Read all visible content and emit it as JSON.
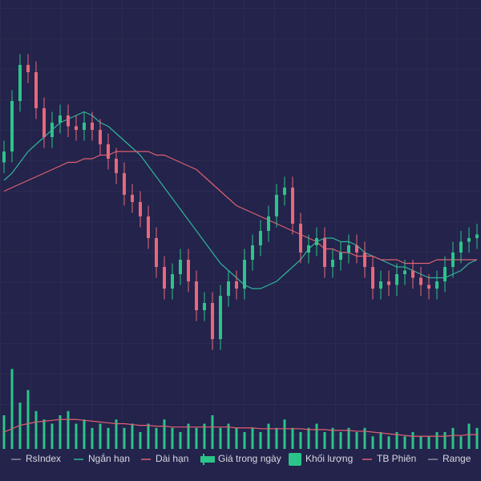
{
  "chart_data": {
    "type": "candlestick",
    "ylim": [
      0,
      100
    ],
    "volume_ylim": [
      0,
      100
    ],
    "series": [
      {
        "name": "RsIndex",
        "color": "#8a8aa0"
      },
      {
        "name": "Ngắn hạn",
        "color": "#2fb59b",
        "values": [
          50,
          52,
          55,
          58,
          60,
          62,
          64,
          66,
          67,
          68,
          69,
          68,
          66,
          65,
          63,
          61,
          59,
          57,
          54,
          51,
          48,
          45,
          42,
          39,
          36,
          33,
          30,
          27,
          25,
          23,
          21,
          20,
          20,
          21,
          22,
          24,
          26,
          28,
          31,
          33,
          34,
          34,
          33,
          33,
          32,
          30,
          29,
          28,
          27,
          26,
          26,
          25,
          24,
          23,
          23,
          23,
          24,
          25,
          27,
          28
        ]
      },
      {
        "name": "Dài hạn",
        "color": "#e0606f",
        "values": [
          47,
          48,
          49,
          50,
          51,
          52,
          53,
          54,
          55,
          55,
          56,
          56,
          57,
          57,
          58,
          58,
          58,
          58,
          58,
          57,
          57,
          56,
          55,
          54,
          53,
          51,
          49,
          47,
          45,
          43,
          42,
          41,
          40,
          39,
          38,
          37,
          36,
          35,
          34,
          33,
          31,
          31,
          30,
          30,
          29,
          29,
          29,
          28,
          28,
          28,
          27,
          27,
          27,
          27,
          28,
          28,
          28,
          28,
          28,
          28
        ]
      },
      {
        "name": "Giá trong ngày",
        "kind": "candle",
        "up_color": "#2bc48a",
        "down_color": "#e8687a",
        "open": [
          55,
          58,
          72,
          82,
          80,
          70,
          62,
          66,
          68,
          65,
          64,
          66,
          64,
          60,
          56,
          52,
          46,
          44,
          40,
          34,
          26,
          20,
          24,
          28,
          22,
          14,
          16,
          6,
          18,
          22,
          20,
          28,
          32,
          36,
          40,
          46,
          48,
          38,
          30,
          32,
          34,
          26,
          28,
          30,
          32,
          30,
          26,
          20,
          22,
          21,
          24,
          25,
          23,
          21,
          20,
          22,
          26,
          30,
          33,
          34
        ],
        "high": [
          61,
          75,
          85,
          85,
          83,
          73,
          69,
          71,
          71,
          68,
          69,
          69,
          67,
          63,
          59,
          55,
          49,
          47,
          43,
          37,
          29,
          27,
          31,
          31,
          25,
          19,
          19,
          21,
          25,
          25,
          31,
          35,
          39,
          43,
          49,
          51,
          51,
          41,
          35,
          37,
          37,
          31,
          33,
          35,
          35,
          33,
          29,
          25,
          25,
          27,
          28,
          28,
          26,
          24,
          25,
          29,
          33,
          36,
          37,
          38
        ],
        "low": [
          52,
          55,
          69,
          77,
          67,
          59,
          59,
          63,
          62,
          61,
          61,
          61,
          57,
          53,
          49,
          43,
          41,
          37,
          31,
          23,
          17,
          17,
          21,
          19,
          11,
          11,
          3,
          3,
          15,
          17,
          17,
          25,
          29,
          33,
          37,
          43,
          35,
          27,
          27,
          29,
          23,
          23,
          25,
          27,
          27,
          23,
          17,
          17,
          18,
          18,
          21,
          20,
          18,
          17,
          17,
          19,
          23,
          27,
          30,
          31
        ],
        "close": [
          58,
          72,
          82,
          80,
          70,
          62,
          66,
          68,
          65,
          64,
          66,
          64,
          60,
          56,
          52,
          46,
          44,
          40,
          34,
          26,
          20,
          24,
          28,
          22,
          14,
          16,
          6,
          18,
          22,
          20,
          28,
          32,
          36,
          40,
          46,
          48,
          38,
          30,
          32,
          34,
          26,
          28,
          30,
          32,
          30,
          26,
          20,
          22,
          21,
          24,
          25,
          23,
          21,
          20,
          22,
          26,
          30,
          33,
          34,
          35
        ]
      },
      {
        "name": "Khối lượng",
        "kind": "volume",
        "color": "#2bc48a",
        "values": [
          40,
          95,
          55,
          70,
          45,
          35,
          30,
          40,
          45,
          30,
          35,
          25,
          30,
          25,
          35,
          25,
          30,
          20,
          30,
          25,
          35,
          25,
          20,
          30,
          25,
          30,
          40,
          25,
          30,
          25,
          20,
          25,
          20,
          30,
          25,
          35,
          25,
          20,
          25,
          30,
          20,
          25,
          20,
          25,
          20,
          25,
          15,
          20,
          15,
          20,
          15,
          20,
          15,
          15,
          20,
          20,
          25,
          15,
          30,
          25
        ]
      },
      {
        "name": "TB Phiên",
        "kind": "volume-line",
        "color": "#e0606f",
        "values": [
          20,
          24,
          28,
          30,
          32,
          33,
          34,
          35,
          35,
          35,
          34,
          33,
          32,
          31,
          30,
          30,
          29,
          28,
          28,
          27,
          27,
          26,
          26,
          26,
          26,
          26,
          26,
          26,
          26,
          25,
          25,
          25,
          24,
          24,
          24,
          24,
          24,
          24,
          23,
          23,
          23,
          22,
          22,
          22,
          21,
          21,
          20,
          19,
          18,
          17,
          16,
          15,
          15,
          15,
          15,
          15,
          16,
          16,
          17,
          17
        ]
      },
      {
        "name": "Range",
        "color": "#8a8aa0"
      }
    ]
  }
}
